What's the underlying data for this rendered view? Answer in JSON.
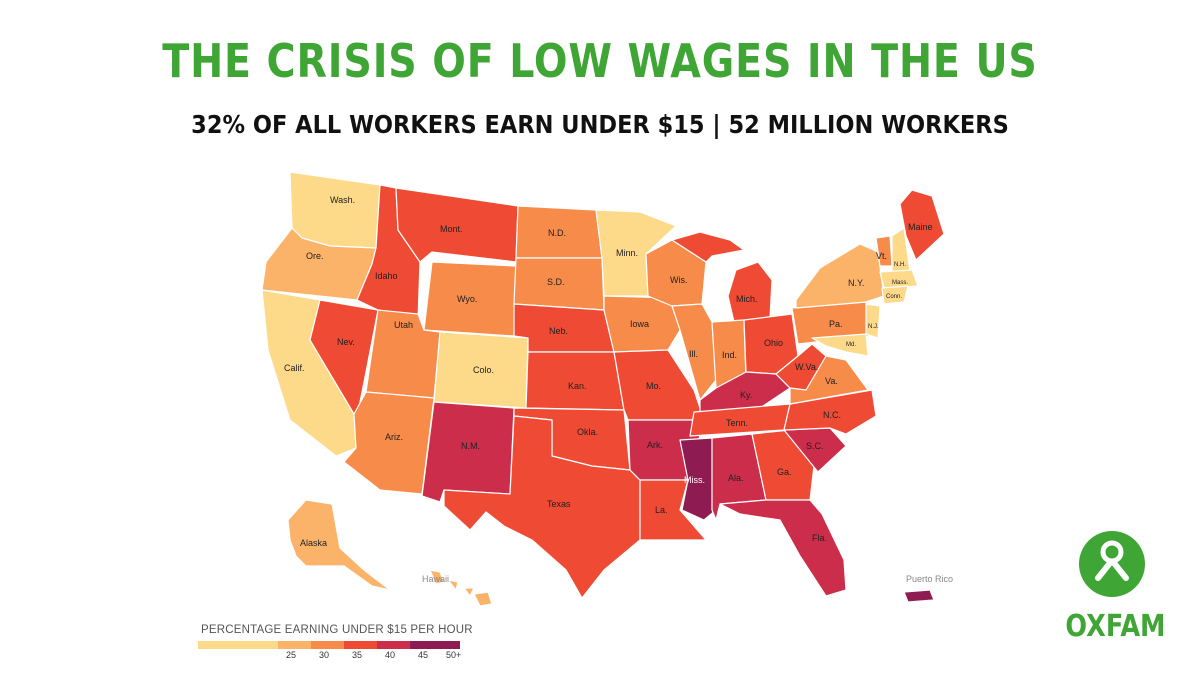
{
  "title": "THE CRISIS OF LOW WAGES IN THE US",
  "subtitle": "32% OF ALL WORKERS EARN UNDER $15  |  52 MILLION WORKERS",
  "legend": {
    "title": "PERCENTAGE EARNING UNDER $15 PER HOUR",
    "ticks": [
      "25",
      "30",
      "35",
      "40",
      "45",
      "50+"
    ],
    "colors": [
      "#fdd98a",
      "#fbb36a",
      "#f68b4a",
      "#ef4a34",
      "#cc2d4a",
      "#8e1b52"
    ]
  },
  "brand": {
    "name": "OXFAM",
    "color": "#3fa535"
  },
  "map_labels": {
    "wash": "Wash.",
    "ore": "Ore.",
    "calif": "Calif.",
    "nev": "Nev.",
    "idaho": "Idaho",
    "mont": "Mont.",
    "wyo": "Wyo.",
    "utah": "Utah",
    "ariz": "Ariz.",
    "colo": "Colo.",
    "nm": "N.M.",
    "nd": "N.D.",
    "sd": "S.D.",
    "neb": "Neb.",
    "kan": "Kan.",
    "okla": "Okla.",
    "texas": "Texas",
    "minn": "Minn.",
    "iowa": "Iowa",
    "mo": "Mo.",
    "ark": "Ark.",
    "la": "La.",
    "wis": "Wis.",
    "ill": "Ill.",
    "mich": "Mich.",
    "ind": "Ind.",
    "ohio": "Ohio",
    "ky": "Ky.",
    "tenn": "Tenn.",
    "miss": "Miss.",
    "ala": "Ala.",
    "ga": "Ga.",
    "fla": "Fla.",
    "sc": "S.C.",
    "nc": "N.C.",
    "va": "Va.",
    "wva": "W.Va.",
    "pa": "Pa.",
    "ny": "N.Y.",
    "vt": "Vt.",
    "nh": "N.H.",
    "maine": "Maine",
    "mass": "Mass.",
    "conn": "Conn.",
    "nj": "N.J.",
    "md": "Md.",
    "alaska": "Alaska",
    "hawaii": "Hawaii",
    "pr": "Puerto Rico"
  }
}
